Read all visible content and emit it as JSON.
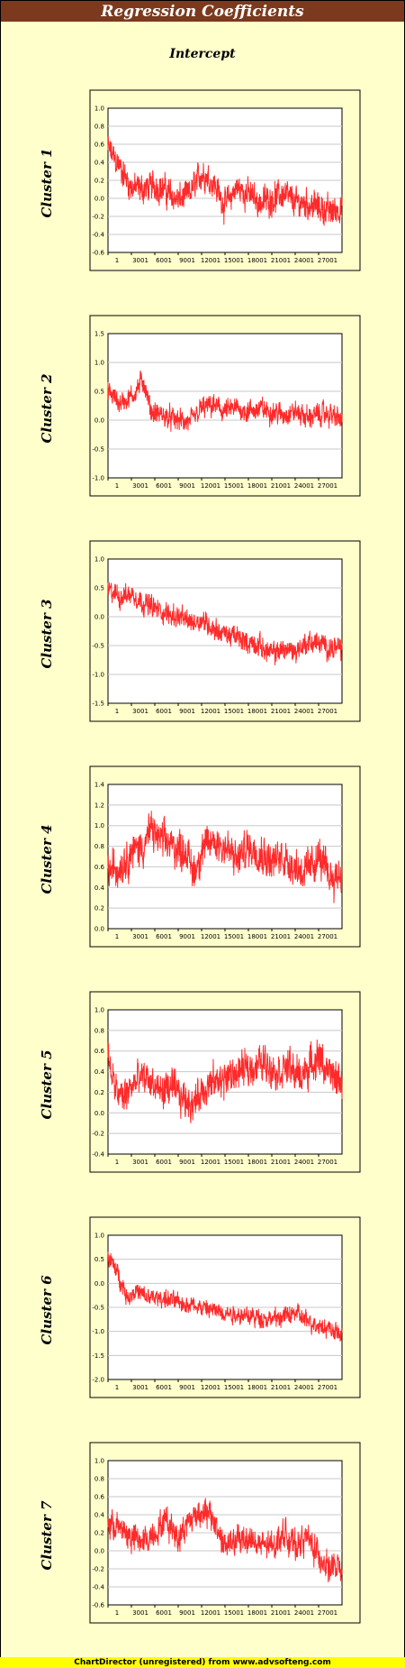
{
  "title": "Regression Coefficients",
  "subtitle": "Intercept",
  "footer": "ChartDirector (unregistered) from www.advsofteng.com",
  "colors": {
    "line": "#ff2a2a",
    "title_bg": "#7b3a1e",
    "page_bg": "#ffffcc",
    "footer_bg": "#ffff00"
  },
  "chart_data": [
    {
      "type": "line",
      "name": "Cluster 1",
      "ylim": [
        -0.6,
        1.0
      ],
      "yticks": [
        "1.0",
        "0.8",
        "0.6",
        "0.4",
        "0.2",
        "0.0",
        "-0.2",
        "-0.4",
        "-0.6"
      ],
      "xticks": [
        "1",
        "3001",
        "6001",
        "9001",
        "12001",
        "15001",
        "18001",
        "21001",
        "24001",
        "27001"
      ],
      "xrange": [
        1,
        30000
      ],
      "trend": [
        [
          1,
          0.55
        ],
        [
          1500,
          0.35
        ],
        [
          3000,
          0.12
        ],
        [
          4500,
          0.1
        ],
        [
          6000,
          0.15
        ],
        [
          7500,
          0.08
        ],
        [
          9000,
          -0.02
        ],
        [
          10500,
          0.05
        ],
        [
          12000,
          0.28
        ],
        [
          13500,
          0.18
        ],
        [
          15000,
          -0.08
        ],
        [
          16500,
          0.12
        ],
        [
          18000,
          0.05
        ],
        [
          19500,
          -0.05
        ],
        [
          21000,
          0.0
        ],
        [
          22500,
          0.05
        ],
        [
          24000,
          -0.05
        ],
        [
          25500,
          -0.05
        ],
        [
          27000,
          -0.1
        ],
        [
          28500,
          -0.15
        ],
        [
          30000,
          -0.1
        ]
      ],
      "noise": 0.13
    },
    {
      "type": "line",
      "name": "Cluster 2",
      "ylim": [
        -1.0,
        1.5
      ],
      "yticks": [
        "1.5",
        "1.0",
        "0.5",
        "0.0",
        "-0.5",
        "-1.0"
      ],
      "xticks": [
        "1",
        "3001",
        "6001",
        "9001",
        "12001",
        "15001",
        "18001",
        "21001",
        "24001",
        "27001"
      ],
      "xrange": [
        1,
        30000
      ],
      "trend": [
        [
          1,
          0.5
        ],
        [
          1500,
          0.3
        ],
        [
          3000,
          0.4
        ],
        [
          4500,
          0.7
        ],
        [
          5500,
          0.15
        ],
        [
          7500,
          0.05
        ],
        [
          9000,
          0.0
        ],
        [
          10500,
          -0.05
        ],
        [
          12000,
          0.2
        ],
        [
          13500,
          0.25
        ],
        [
          15000,
          0.15
        ],
        [
          16500,
          0.2
        ],
        [
          18000,
          0.15
        ],
        [
          19500,
          0.2
        ],
        [
          21000,
          0.15
        ],
        [
          22500,
          0.1
        ],
        [
          24000,
          0.15
        ],
        [
          25500,
          0.05
        ],
        [
          27000,
          0.1
        ],
        [
          28500,
          0.1
        ],
        [
          30000,
          0.0
        ]
      ],
      "noise": 0.15
    },
    {
      "type": "line",
      "name": "Cluster 3",
      "ylim": [
        -1.5,
        1.0
      ],
      "yticks": [
        "1.0",
        "0.5",
        "0.0",
        "-0.5",
        "-1.0",
        "-1.5"
      ],
      "xticks": [
        "1",
        "3001",
        "6001",
        "9001",
        "12001",
        "15001",
        "18001",
        "21001",
        "24001",
        "27001"
      ],
      "xrange": [
        1,
        30000
      ],
      "trend": [
        [
          1,
          0.45
        ],
        [
          1500,
          0.35
        ],
        [
          3000,
          0.4
        ],
        [
          4500,
          0.25
        ],
        [
          6000,
          0.15
        ],
        [
          7500,
          0.05
        ],
        [
          9000,
          0.0
        ],
        [
          10500,
          -0.1
        ],
        [
          12000,
          -0.05
        ],
        [
          13500,
          -0.2
        ],
        [
          15000,
          -0.3
        ],
        [
          16500,
          -0.35
        ],
        [
          18000,
          -0.45
        ],
        [
          19500,
          -0.5
        ],
        [
          21000,
          -0.65
        ],
        [
          22500,
          -0.55
        ],
        [
          24000,
          -0.6
        ],
        [
          25500,
          -0.45
        ],
        [
          27000,
          -0.45
        ],
        [
          28500,
          -0.55
        ],
        [
          30000,
          -0.55
        ]
      ],
      "noise": 0.15
    },
    {
      "type": "line",
      "name": "Cluster 4",
      "ylim": [
        0.0,
        1.4
      ],
      "yticks": [
        "1.4",
        "1.2",
        "1.0",
        "0.8",
        "0.6",
        "0.4",
        "0.2",
        "0.0"
      ],
      "xticks": [
        "1",
        "3001",
        "6001",
        "9001",
        "12001",
        "15001",
        "18001",
        "21001",
        "24001",
        "27001"
      ],
      "xrange": [
        1,
        30000
      ],
      "trend": [
        [
          1,
          0.55
        ],
        [
          1500,
          0.6
        ],
        [
          3000,
          0.75
        ],
        [
          4500,
          0.8
        ],
        [
          5500,
          0.95
        ],
        [
          7000,
          0.85
        ],
        [
          8500,
          0.8
        ],
        [
          10000,
          0.75
        ],
        [
          11000,
          0.55
        ],
        [
          12000,
          0.75
        ],
        [
          13500,
          0.85
        ],
        [
          15000,
          0.8
        ],
        [
          16500,
          0.65
        ],
        [
          18000,
          0.8
        ],
        [
          19500,
          0.75
        ],
        [
          21000,
          0.65
        ],
        [
          22500,
          0.7
        ],
        [
          24000,
          0.6
        ],
        [
          25500,
          0.55
        ],
        [
          27000,
          0.7
        ],
        [
          28500,
          0.5
        ],
        [
          30000,
          0.55
        ]
      ],
      "noise": 0.15
    },
    {
      "type": "line",
      "name": "Cluster 5",
      "ylim": [
        -0.4,
        1.0
      ],
      "yticks": [
        "1.0",
        "0.8",
        "0.6",
        "0.4",
        "0.2",
        "0.0",
        "-0.2",
        "-0.4"
      ],
      "xticks": [
        "1",
        "3001",
        "6001",
        "9001",
        "12001",
        "15001",
        "18001",
        "21001",
        "24001",
        "27001"
      ],
      "xrange": [
        1,
        30000
      ],
      "trend": [
        [
          1,
          0.55
        ],
        [
          1000,
          0.2
        ],
        [
          2000,
          0.15
        ],
        [
          3500,
          0.3
        ],
        [
          5000,
          0.35
        ],
        [
          6500,
          0.2
        ],
        [
          8000,
          0.25
        ],
        [
          9500,
          0.15
        ],
        [
          11000,
          0.1
        ],
        [
          12500,
          0.25
        ],
        [
          14000,
          0.3
        ],
        [
          15500,
          0.35
        ],
        [
          17000,
          0.4
        ],
        [
          18500,
          0.45
        ],
        [
          20000,
          0.5
        ],
        [
          21500,
          0.4
        ],
        [
          23000,
          0.45
        ],
        [
          24500,
          0.35
        ],
        [
          26000,
          0.45
        ],
        [
          27000,
          0.55
        ],
        [
          28500,
          0.35
        ],
        [
          30000,
          0.3
        ]
      ],
      "noise": 0.14
    },
    {
      "type": "line",
      "name": "Cluster 6",
      "ylim": [
        -2.0,
        1.0
      ],
      "yticks": [
        "1.0",
        "0.5",
        "0.0",
        "-0.5",
        "-1.0",
        "-1.5",
        "-2.0"
      ],
      "xticks": [
        "1",
        "3001",
        "6001",
        "9001",
        "12001",
        "15001",
        "18001",
        "21001",
        "24001",
        "27001"
      ],
      "xrange": [
        1,
        30000
      ],
      "trend": [
        [
          1,
          0.55
        ],
        [
          1000,
          0.3
        ],
        [
          2500,
          -0.3
        ],
        [
          3500,
          -0.15
        ],
        [
          5000,
          -0.3
        ],
        [
          7000,
          -0.3
        ],
        [
          9000,
          -0.4
        ],
        [
          11000,
          -0.45
        ],
        [
          13000,
          -0.55
        ],
        [
          15000,
          -0.6
        ],
        [
          17000,
          -0.65
        ],
        [
          19000,
          -0.7
        ],
        [
          21000,
          -0.75
        ],
        [
          22500,
          -0.7
        ],
        [
          24000,
          -0.6
        ],
        [
          25500,
          -0.8
        ],
        [
          27000,
          -0.85
        ],
        [
          28500,
          -0.95
        ],
        [
          30000,
          -1.1
        ]
      ],
      "noise": 0.15
    },
    {
      "type": "line",
      "name": "Cluster 7",
      "ylim": [
        -0.6,
        1.0
      ],
      "yticks": [
        "1.0",
        "0.8",
        "0.6",
        "0.4",
        "0.2",
        "0.0",
        "-0.2",
        "-0.4",
        "-0.6"
      ],
      "xticks": [
        "1",
        "3001",
        "6001",
        "9001",
        "12001",
        "15001",
        "18001",
        "21001",
        "24001",
        "27001"
      ],
      "xrange": [
        1,
        30000
      ],
      "trend": [
        [
          1,
          0.3
        ],
        [
          1500,
          0.25
        ],
        [
          3000,
          0.15
        ],
        [
          4500,
          0.1
        ],
        [
          6000,
          0.2
        ],
        [
          7500,
          0.35
        ],
        [
          9000,
          0.15
        ],
        [
          10500,
          0.35
        ],
        [
          12000,
          0.45
        ],
        [
          13500,
          0.35
        ],
        [
          15000,
          0.05
        ],
        [
          16500,
          0.1
        ],
        [
          18000,
          0.15
        ],
        [
          19500,
          0.05
        ],
        [
          21000,
          0.05
        ],
        [
          22500,
          0.2
        ],
        [
          24000,
          0.05
        ],
        [
          25500,
          0.15
        ],
        [
          27000,
          -0.05
        ],
        [
          28500,
          -0.2
        ],
        [
          30000,
          -0.2
        ]
      ],
      "noise": 0.13
    }
  ]
}
